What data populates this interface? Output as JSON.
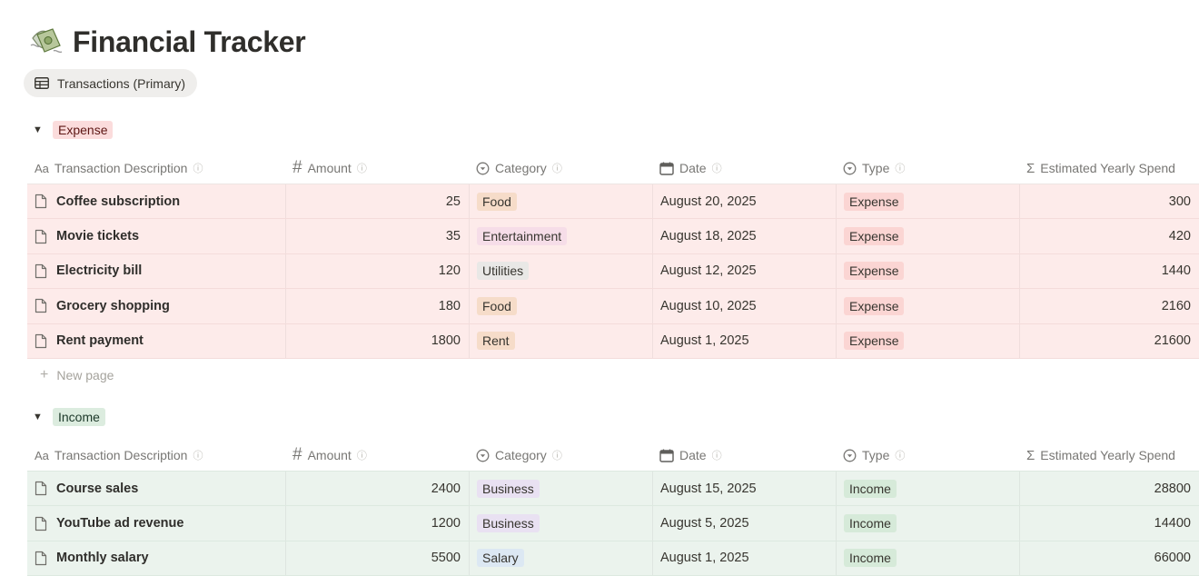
{
  "page": {
    "title": "Financial Tracker",
    "emoji": "money-with-wings-icon"
  },
  "view_tab": {
    "label": "Transactions (Primary)"
  },
  "columns": {
    "name": "Transaction Description",
    "amount": "Amount",
    "category": "Category",
    "date": "Date",
    "type": "Type",
    "yearly": "Estimated Yearly Spend",
    "name_icon": "Aa",
    "amount_icon": "#",
    "yearly_icon": "Σ"
  },
  "colors": {
    "expense_row": "#fdebea",
    "income_row": "#ebf3ed",
    "tag_food": "#f6dcc9",
    "tag_entertainment": "#f6dde8",
    "tag_utilities": "#e9e8e6",
    "tag_rent": "#f6dcc9",
    "tag_business": "#e9e1f2",
    "tag_salary": "#dce8f3",
    "tag_expense": "#fbd5d3",
    "tag_income": "#d6ead9"
  },
  "groups": {
    "expense": {
      "label": "Expense",
      "new_page": "New page",
      "rows": [
        {
          "name": "Coffee subscription",
          "amount": "25",
          "category": "Food",
          "date": "August 20, 2025",
          "type": "Expense",
          "yearly": "300"
        },
        {
          "name": "Movie tickets",
          "amount": "35",
          "category": "Entertainment",
          "date": "August 18, 2025",
          "type": "Expense",
          "yearly": "420"
        },
        {
          "name": "Electricity bill",
          "amount": "120",
          "category": "Utilities",
          "date": "August 12, 2025",
          "type": "Expense",
          "yearly": "1440"
        },
        {
          "name": "Grocery shopping",
          "amount": "180",
          "category": "Food",
          "date": "August 10, 2025",
          "type": "Expense",
          "yearly": "2160"
        },
        {
          "name": "Rent payment",
          "amount": "1800",
          "category": "Rent",
          "date": "August 1, 2025",
          "type": "Expense",
          "yearly": "21600"
        }
      ]
    },
    "income": {
      "label": "Income",
      "rows": [
        {
          "name": "Course sales",
          "amount": "2400",
          "category": "Business",
          "date": "August 15, 2025",
          "type": "Income",
          "yearly": "28800"
        },
        {
          "name": "YouTube ad revenue",
          "amount": "1200",
          "category": "Business",
          "date": "August 5, 2025",
          "type": "Income",
          "yearly": "14400"
        },
        {
          "name": "Monthly salary",
          "amount": "5500",
          "category": "Salary",
          "date": "August 1, 2025",
          "type": "Income",
          "yearly": "66000"
        }
      ]
    }
  }
}
